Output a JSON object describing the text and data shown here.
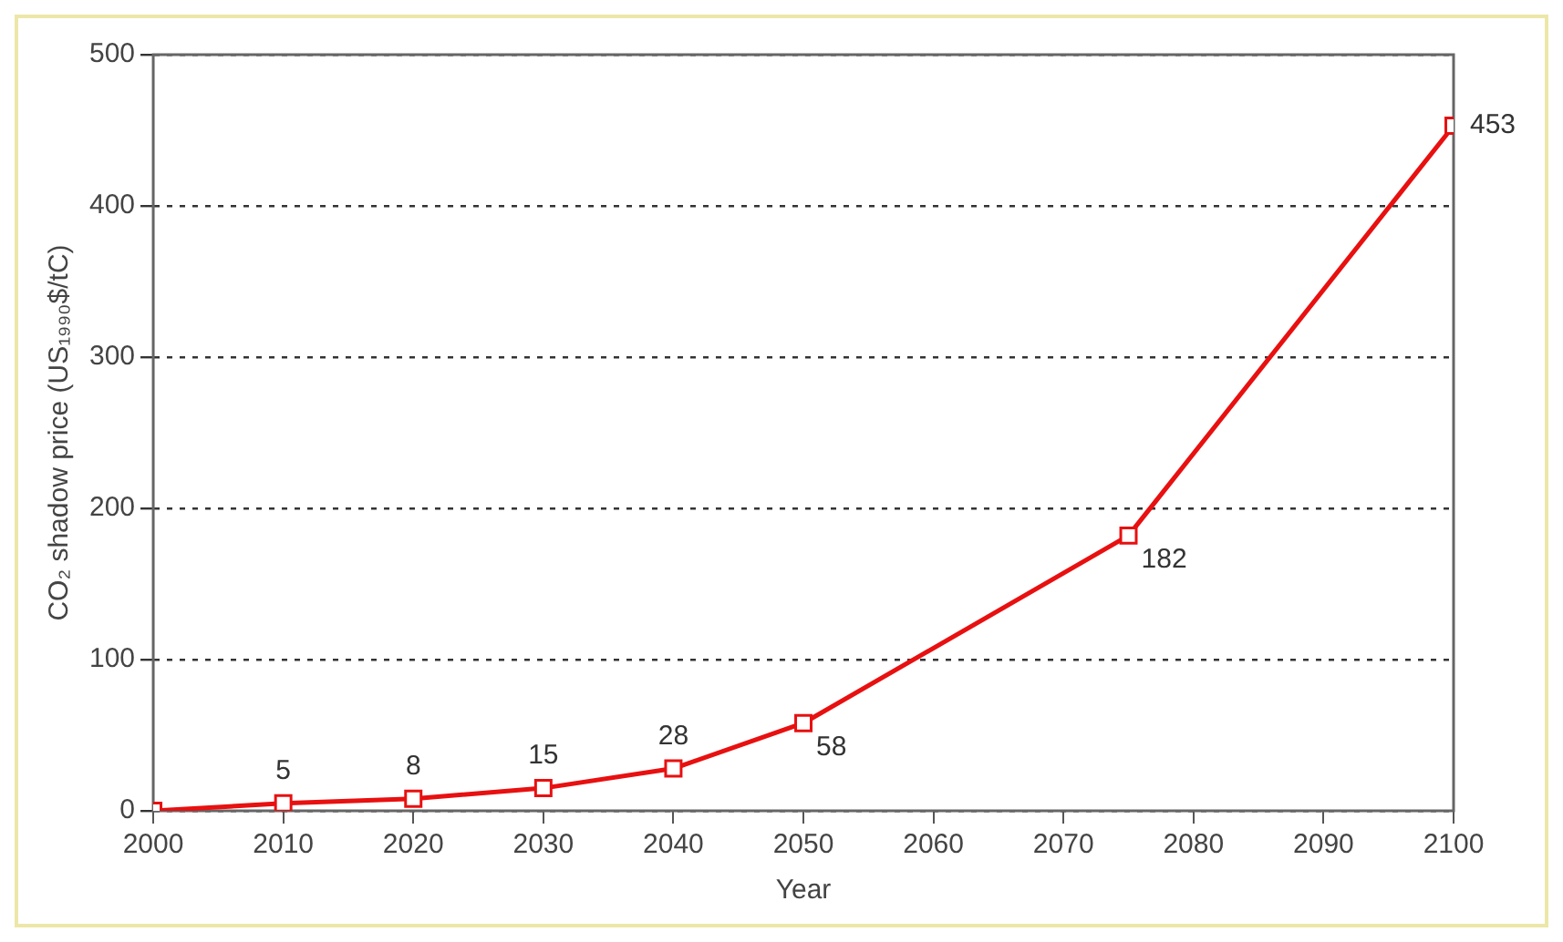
{
  "chart_data": {
    "type": "line",
    "xlabel": "Year",
    "ylabel": "CO₂ shadow price (US₁₉₉₀$/tC)",
    "x": [
      2000,
      2010,
      2020,
      2030,
      2040,
      2050,
      2075,
      2100
    ],
    "series": [
      {
        "color": "#e81010",
        "values": [
          0,
          5,
          8,
          15,
          28,
          58,
          182,
          453
        ],
        "value_labels": [
          null,
          "5",
          "8",
          "15",
          "28",
          "58",
          "182",
          "453"
        ]
      }
    ],
    "xlim": [
      2000,
      2100
    ],
    "xticks": [
      2000,
      2010,
      2020,
      2030,
      2040,
      2050,
      2060,
      2070,
      2080,
      2090,
      2100
    ],
    "ylim": [
      0,
      500
    ],
    "yticks": [
      0,
      100,
      200,
      300,
      400,
      500
    ],
    "grid": "y",
    "marker": "square",
    "line_style": "solid",
    "legend": false
  }
}
